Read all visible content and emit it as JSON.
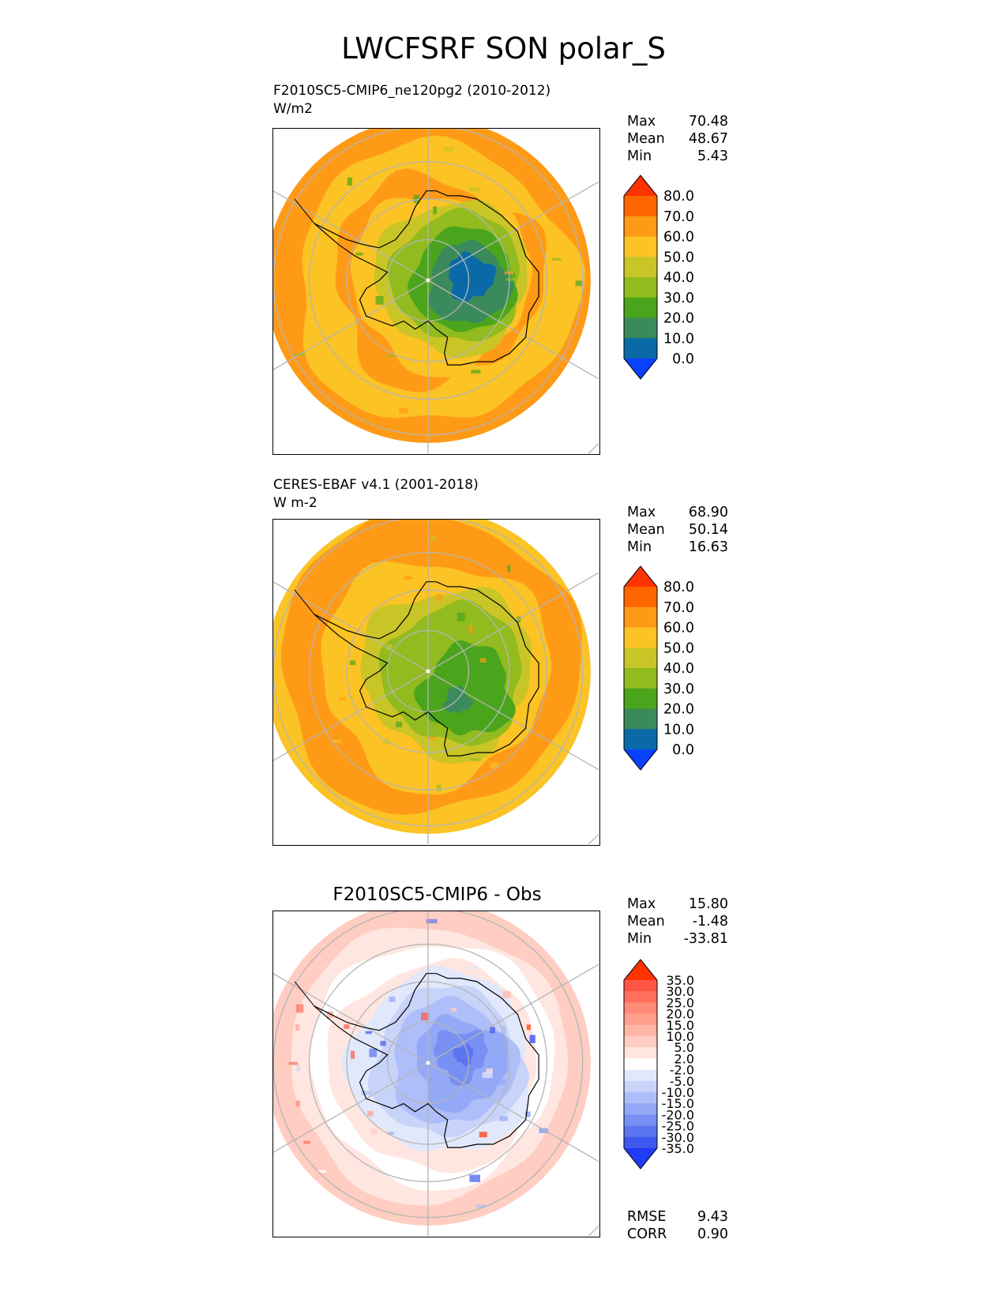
{
  "figure": {
    "title": "LWCFSRF SON polar_S"
  },
  "panels": [
    {
      "id": "test",
      "title_line1": "F2010SC5-CMIP6_ne120pg2 (2010-2012)",
      "title_line2": "W/m2",
      "center_title": "",
      "stats": {
        "max_label": "Max",
        "max": "70.48",
        "mean_label": "Mean",
        "mean": "48.67",
        "min_label": "Min",
        "min": "5.43"
      },
      "colorbar": {
        "levels": [
          "80.0",
          "70.0",
          "60.0",
          "50.0",
          "40.0",
          "30.0",
          "20.0",
          "10.0",
          "0.0"
        ],
        "colors": [
          "#ff3300",
          "#ff6600",
          "#ff9a16",
          "#fbc324",
          "#c9c526",
          "#91bb1e",
          "#4aa51c",
          "#3a8a5c",
          "#0a6aa7",
          "#0a40ff"
        ]
      }
    },
    {
      "id": "ref",
      "title_line1": "CERES-EBAF v4.1 (2001-2018)",
      "title_line2": "W m-2",
      "center_title": "",
      "stats": {
        "max_label": "Max",
        "max": "68.90",
        "mean_label": "Mean",
        "mean": "50.14",
        "min_label": "Min",
        "min": "16.63"
      },
      "colorbar": {
        "levels": [
          "80.0",
          "70.0",
          "60.0",
          "50.0",
          "40.0",
          "30.0",
          "20.0",
          "10.0",
          "0.0"
        ],
        "colors": [
          "#ff3300",
          "#ff6600",
          "#ff9a16",
          "#fbc324",
          "#c9c526",
          "#91bb1e",
          "#4aa51c",
          "#3a8a5c",
          "#0a6aa7",
          "#0a40ff"
        ]
      }
    },
    {
      "id": "diff",
      "title_line1": "",
      "title_line2": "",
      "center_title": "F2010SC5-CMIP6 - Obs",
      "stats": {
        "max_label": "Max",
        "max": "15.80",
        "mean_label": "Mean",
        "mean": "-1.48",
        "min_label": "Min",
        "min": "-33.81"
      },
      "colorbar": {
        "levels": [
          "35.0",
          "30.0",
          "25.0",
          "20.0",
          "15.0",
          "10.0",
          "5.0",
          "2.0",
          "-2.0",
          "-5.0",
          "-10.0",
          "-15.0",
          "-20.0",
          "-25.0",
          "-30.0",
          "-35.0"
        ],
        "colors": [
          "#ff3300",
          "#ff5544",
          "#ff6f5c",
          "#ff8a75",
          "#ff9f8c",
          "#ffb6a6",
          "#ffcdc2",
          "#ffe6e0",
          "#ffffff",
          "#e2e8fc",
          "#c8d3fa",
          "#aebef8",
          "#93a8f6",
          "#7890f3",
          "#5b74f0",
          "#3d58ee",
          "#1f3cf8"
        ]
      },
      "rmse_label": "RMSE",
      "rmse": "9.43",
      "corr_label": "CORR",
      "corr": "0.90"
    }
  ],
  "chart_data": [
    {
      "type": "heatmap",
      "title": "F2010SC5-CMIP6_ne120pg2 (2010-2012)",
      "units": "W/m2",
      "projection": "south polar stereographic",
      "contour_levels": [
        0,
        10,
        20,
        30,
        40,
        50,
        60,
        70,
        80
      ],
      "max": 70.48,
      "mean": 48.67,
      "min": 5.43,
      "approx_zones": [
        {
          "region": "open ocean ring",
          "value_range": [
            60,
            70
          ]
        },
        {
          "region": "sea-ice margin",
          "value_range": [
            50,
            60
          ]
        },
        {
          "region": "coastal Antarctica",
          "value_range": [
            30,
            50
          ]
        },
        {
          "region": "East Antarctic plateau",
          "value_range": [
            5,
            20
          ]
        }
      ]
    },
    {
      "type": "heatmap",
      "title": "CERES-EBAF v4.1 (2001-2018)",
      "units": "W m-2",
      "projection": "south polar stereographic",
      "contour_levels": [
        0,
        10,
        20,
        30,
        40,
        50,
        60,
        70,
        80
      ],
      "max": 68.9,
      "mean": 50.14,
      "min": 16.63,
      "approx_zones": [
        {
          "region": "open ocean ring",
          "value_range": [
            50,
            70
          ]
        },
        {
          "region": "coastal Antarctica",
          "value_range": [
            40,
            50
          ]
        },
        {
          "region": "East Antarctic plateau",
          "value_range": [
            20,
            40
          ]
        }
      ]
    },
    {
      "type": "heatmap",
      "title": "F2010SC5-CMIP6 - Obs",
      "projection": "south polar stereographic",
      "contour_levels": [
        -35,
        -30,
        -25,
        -20,
        -15,
        -10,
        -5,
        -2,
        2,
        5,
        10,
        15,
        20,
        25,
        30,
        35
      ],
      "max": 15.8,
      "mean": -1.48,
      "min": -33.81,
      "rmse": 9.43,
      "corr": 0.9,
      "approx_zones": [
        {
          "region": "outer ocean ring",
          "value_range": [
            2,
            15
          ]
        },
        {
          "region": "sea-ice zone",
          "value_range": [
            -10,
            -2
          ]
        },
        {
          "region": "East Antarctic plateau",
          "value_range": [
            -30,
            -15
          ]
        }
      ]
    }
  ]
}
